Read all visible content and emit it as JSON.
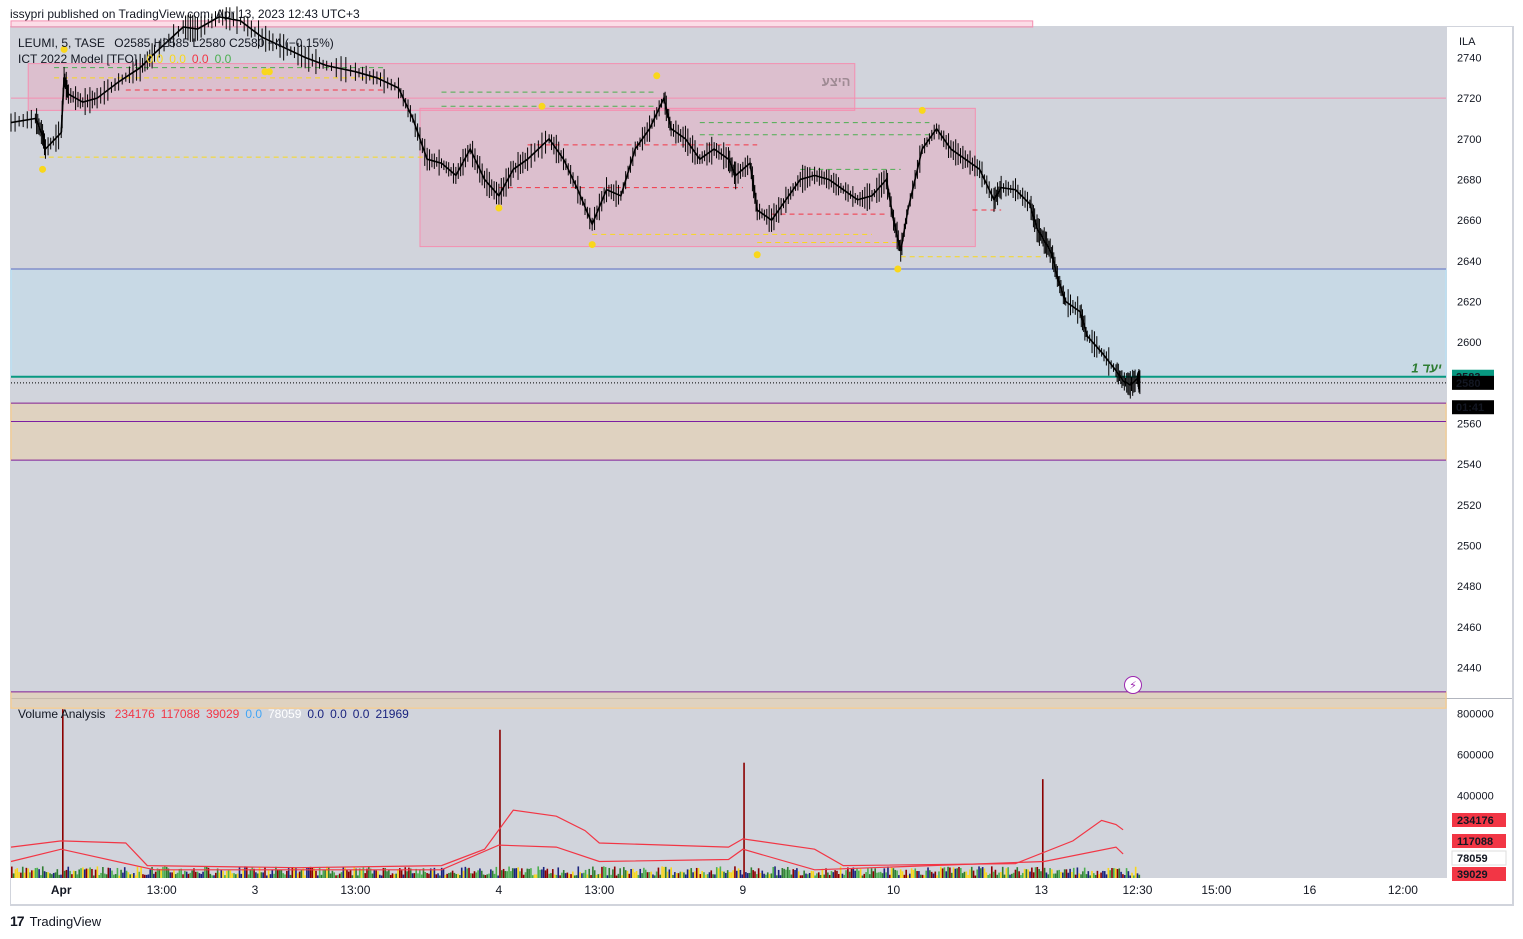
{
  "header": {
    "published": "issypri published on TradingView.com, Apr 13, 2023 12:43 UTC+3"
  },
  "legend": {
    "symbol": "LEUMI, 5, TASE",
    "ohlc": "O2585  H2585  L2580  C2580  −4 (−0.15%)",
    "indicator_name": "ICT 2022 Model [TFO]",
    "indicator_values": [
      {
        "text": "0.0",
        "color": "#f9d71c"
      },
      {
        "text": "0.0",
        "color": "#f9d71c"
      },
      {
        "text": "0.0",
        "color": "#f23645"
      },
      {
        "text": "0.0",
        "color": "#4caf50"
      }
    ]
  },
  "volume_legend": {
    "name": "Volume Analysis",
    "values": [
      {
        "text": "234176",
        "color": "#f23645"
      },
      {
        "text": "117088",
        "color": "#f23645"
      },
      {
        "text": "39029",
        "color": "#f23645"
      },
      {
        "text": "0.0",
        "color": "#42a5f5"
      },
      {
        "text": "78059",
        "color": "#ffffff"
      },
      {
        "text": "0.0",
        "color": "#1a237e"
      },
      {
        "text": "0.0",
        "color": "#1a237e"
      },
      {
        "text": "0.0",
        "color": "#1a237e"
      },
      {
        "text": "21969",
        "color": "#1a237e"
      }
    ]
  },
  "annotations": {
    "zone_label": "היצע",
    "target_label": "יעד 1"
  },
  "price_axis": {
    "currency": "ILA",
    "ticks": [
      "2740",
      "2720",
      "2700",
      "2680",
      "2660",
      "2640",
      "2620",
      "2600",
      "2560",
      "2540",
      "2520",
      "2500",
      "2480",
      "2460",
      "2440"
    ],
    "tick_values": [
      2740,
      2720,
      2700,
      2680,
      2660,
      2640,
      2620,
      2600,
      2560,
      2540,
      2520,
      2500,
      2480,
      2460,
      2440
    ],
    "badges": [
      {
        "text": "2583",
        "bg": "#089981",
        "fg": "#ffffff",
        "value": 2583
      },
      {
        "text": "2580",
        "bg": "#000000",
        "fg": "#ffffff",
        "value": 2580
      },
      {
        "text": "01:41",
        "bg": "#000000",
        "fg": "#ffffff",
        "value": 2568
      }
    ]
  },
  "volume_axis": {
    "ticks": [
      "800000",
      "600000",
      "400000"
    ],
    "tick_values": [
      800000,
      600000,
      400000
    ],
    "badges": [
      {
        "text": "234176",
        "bg": "#f23645",
        "fg": "#ffffff",
        "value": 234176
      },
      {
        "text": "117088",
        "bg": "#f23645",
        "fg": "#ffffff",
        "value": 117088
      },
      {
        "text": "78059",
        "bg": "#ffffff",
        "fg": "#131722",
        "value": 45000
      },
      {
        "text": "39029",
        "bg": "#f23645",
        "fg": "#ffffff",
        "value": 0
      }
    ]
  },
  "time_axis": {
    "labels": [
      "Apr",
      "13:00",
      "3",
      "13:00",
      "4",
      "13:00",
      "9",
      "10",
      "13",
      "12:30",
      "15:00",
      "16",
      "12:00"
    ],
    "positions": [
      0.035,
      0.105,
      0.17,
      0.24,
      0.34,
      0.41,
      0.51,
      0.615,
      0.718,
      0.785,
      0.84,
      0.905,
      0.97
    ],
    "bold": [
      "Apr"
    ]
  },
  "footer": {
    "brand": "TradingView"
  },
  "colors": {
    "supply_zone": "#f48fb1",
    "demand_zone": "#ffcc80",
    "discount_zone": "#b3e5fc",
    "target_line": "#089981",
    "purple_line": "#7b1fa2",
    "candle": "#000000"
  },
  "chart_data": {
    "type": "line",
    "symbol": "LEUMI",
    "interval": "5",
    "exchange": "TASE",
    "ylim": [
      2425,
      2755
    ],
    "x_range": [
      0,
      1
    ],
    "price_path": [
      [
        0.0,
        2708
      ],
      [
        0.017,
        2710
      ],
      [
        0.022,
        2702
      ],
      [
        0.024,
        2695
      ],
      [
        0.035,
        2703
      ],
      [
        0.037,
        2730
      ],
      [
        0.04,
        2722
      ],
      [
        0.05,
        2718
      ],
      [
        0.06,
        2720
      ],
      [
        0.075,
        2728
      ],
      [
        0.09,
        2735
      ],
      [
        0.1,
        2742
      ],
      [
        0.12,
        2755
      ],
      [
        0.13,
        2754
      ],
      [
        0.145,
        2760
      ],
      [
        0.16,
        2758
      ],
      [
        0.175,
        2750
      ],
      [
        0.19,
        2745
      ],
      [
        0.205,
        2740
      ],
      [
        0.22,
        2736
      ],
      [
        0.24,
        2733
      ],
      [
        0.255,
        2730
      ],
      [
        0.27,
        2725
      ],
      [
        0.28,
        2710
      ],
      [
        0.29,
        2690
      ],
      [
        0.3,
        2688
      ],
      [
        0.31,
        2682
      ],
      [
        0.32,
        2695
      ],
      [
        0.33,
        2680
      ],
      [
        0.34,
        2672
      ],
      [
        0.35,
        2685
      ],
      [
        0.36,
        2690
      ],
      [
        0.375,
        2700
      ],
      [
        0.385,
        2690
      ],
      [
        0.395,
        2675
      ],
      [
        0.405,
        2658
      ],
      [
        0.415,
        2675
      ],
      [
        0.425,
        2672
      ],
      [
        0.435,
        2695
      ],
      [
        0.445,
        2705
      ],
      [
        0.455,
        2720
      ],
      [
        0.46,
        2705
      ],
      [
        0.47,
        2700
      ],
      [
        0.48,
        2690
      ],
      [
        0.49,
        2695
      ],
      [
        0.5,
        2690
      ],
      [
        0.505,
        2682
      ],
      [
        0.515,
        2688
      ],
      [
        0.52,
        2665
      ],
      [
        0.53,
        2660
      ],
      [
        0.54,
        2670
      ],
      [
        0.55,
        2680
      ],
      [
        0.56,
        2682
      ],
      [
        0.57,
        2680
      ],
      [
        0.58,
        2675
      ],
      [
        0.59,
        2670
      ],
      [
        0.6,
        2672
      ],
      [
        0.61,
        2680
      ],
      [
        0.615,
        2660
      ],
      [
        0.62,
        2645
      ],
      [
        0.625,
        2665
      ],
      [
        0.635,
        2695
      ],
      [
        0.645,
        2705
      ],
      [
        0.655,
        2695
      ],
      [
        0.665,
        2690
      ],
      [
        0.675,
        2685
      ],
      [
        0.685,
        2670
      ],
      [
        0.69,
        2676
      ],
      [
        0.7,
        2675
      ],
      [
        0.71,
        2668
      ],
      [
        0.715,
        2656
      ],
      [
        0.72,
        2650
      ],
      [
        0.725,
        2644
      ],
      [
        0.73,
        2630
      ],
      [
        0.735,
        2620
      ],
      [
        0.745,
        2615
      ],
      [
        0.75,
        2603
      ],
      [
        0.76,
        2595
      ],
      [
        0.77,
        2586
      ],
      [
        0.775,
        2581
      ],
      [
        0.78,
        2579
      ],
      [
        0.785,
        2582
      ],
      [
        0.787,
        2580
      ]
    ],
    "horizontal_levels": [
      {
        "value": 2720,
        "color": "#f48fb1"
      },
      {
        "value": 2636,
        "color": "#5c6bc0"
      },
      {
        "value": 2583,
        "color": "#089981"
      },
      {
        "value": 2570,
        "color": "#7b1fa2"
      },
      {
        "value": 2561,
        "color": "#7b1fa2"
      },
      {
        "value": 2542,
        "color": "#7b1fa2"
      },
      {
        "value": 2428,
        "color": "#7b1fa2"
      }
    ],
    "zones": [
      {
        "name": "supply-zone-top",
        "x": [
          0.0,
          0.712
        ],
        "y": [
          2755,
          2758
        ],
        "color": "#f48fb1"
      },
      {
        "name": "supply-zone-1",
        "x": [
          0.012,
          0.588
        ],
        "y": [
          2714,
          2737
        ],
        "color": "#f48fb1"
      },
      {
        "name": "supply-zone-2",
        "x": [
          0.285,
          0.672
        ],
        "y": [
          2647,
          2715
        ],
        "color": "#f48fb1"
      },
      {
        "name": "discount-zone",
        "x": [
          0.0,
          1.0
        ],
        "y": [
          2583,
          2636
        ],
        "color": "#b3e5fc"
      },
      {
        "name": "demand-zone",
        "x": [
          0.0,
          1.0
        ],
        "y": [
          2542,
          2570
        ],
        "color": "#ffcc80"
      },
      {
        "name": "demand-zone-low",
        "x": [
          0.0,
          1.0
        ],
        "y": [
          2420,
          2428
        ],
        "color": "#ffcc80"
      }
    ],
    "pivots_high": [
      [
        0.037,
        2744
      ],
      [
        0.18,
        2733
      ],
      [
        0.37,
        2716
      ],
      [
        0.45,
        2731
      ],
      [
        0.635,
        2714
      ]
    ],
    "pivots_low": [
      [
        0.022,
        2685
      ],
      [
        0.177,
        2733
      ],
      [
        0.34,
        2666
      ],
      [
        0.405,
        2648
      ],
      [
        0.52,
        2643
      ],
      [
        0.618,
        2636
      ]
    ],
    "volume_ylim": [
      0,
      850000
    ],
    "volume_spikes": [
      [
        0.035,
        820000
      ],
      [
        0.34,
        720000
      ],
      [
        0.51,
        560000
      ],
      [
        0.718,
        480000
      ]
    ],
    "volume_ma_upper": [
      [
        0.0,
        150000
      ],
      [
        0.035,
        180000
      ],
      [
        0.08,
        170000
      ],
      [
        0.095,
        60000
      ],
      [
        0.2,
        50000
      ],
      [
        0.3,
        60000
      ],
      [
        0.33,
        140000
      ],
      [
        0.35,
        330000
      ],
      [
        0.38,
        300000
      ],
      [
        0.4,
        230000
      ],
      [
        0.41,
        170000
      ],
      [
        0.5,
        150000
      ],
      [
        0.51,
        190000
      ],
      [
        0.56,
        140000
      ],
      [
        0.58,
        60000
      ],
      [
        0.7,
        70000
      ],
      [
        0.74,
        180000
      ],
      [
        0.76,
        280000
      ],
      [
        0.77,
        260000
      ],
      [
        0.775,
        234176
      ]
    ],
    "volume_ma_lower": [
      [
        0.0,
        80000
      ],
      [
        0.035,
        140000
      ],
      [
        0.1,
        40000
      ],
      [
        0.3,
        40000
      ],
      [
        0.34,
        160000
      ],
      [
        0.38,
        150000
      ],
      [
        0.41,
        80000
      ],
      [
        0.5,
        90000
      ],
      [
        0.51,
        140000
      ],
      [
        0.56,
        40000
      ],
      [
        0.72,
        80000
      ],
      [
        0.77,
        150000
      ],
      [
        0.775,
        117088
      ]
    ]
  }
}
